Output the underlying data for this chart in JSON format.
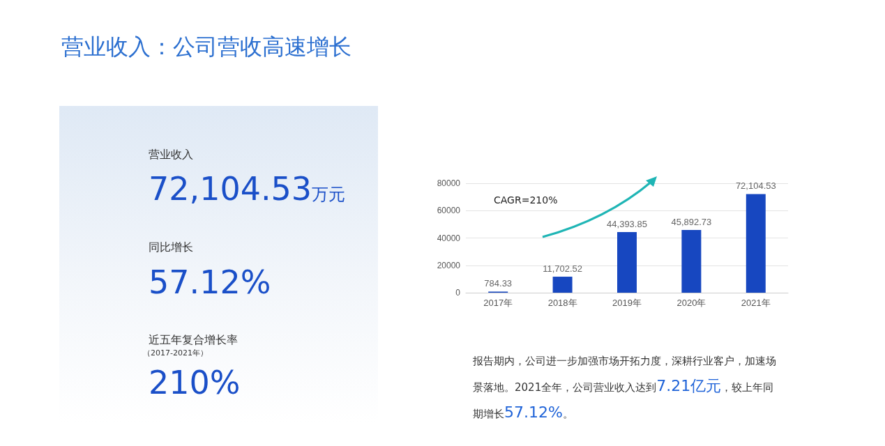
{
  "chart_data": {
    "type": "bar",
    "title": "营业收入：公司营收高速增长",
    "categories": [
      "2017年",
      "2018年",
      "2019年",
      "2020年",
      "2021年"
    ],
    "values": [
      784.33,
      11702.52,
      44393.85,
      45892.73,
      72104.53
    ],
    "value_labels": [
      "784.33",
      "11,702.52",
      "44,393.85",
      "45,892.73",
      "72,104.53"
    ],
    "color": "#1747c0",
    "ylim": [
      0,
      80000
    ],
    "yticks": [
      0,
      20000,
      40000,
      60000,
      80000
    ],
    "grid": "y",
    "annotations": [
      "营业收入",
      "72,104.53万元",
      "同比增长",
      "57.12%",
      "近五年复合增长率",
      "（2017-2021年）",
      "210%",
      "CAGR=210%",
      "报告期内，公司进一步加强市场开拓力度，深耕行业客户，加速场景落地。2021全年，公司营业收入达到7.21亿元，较上年同期增长57.12%。"
    ]
  }
}
